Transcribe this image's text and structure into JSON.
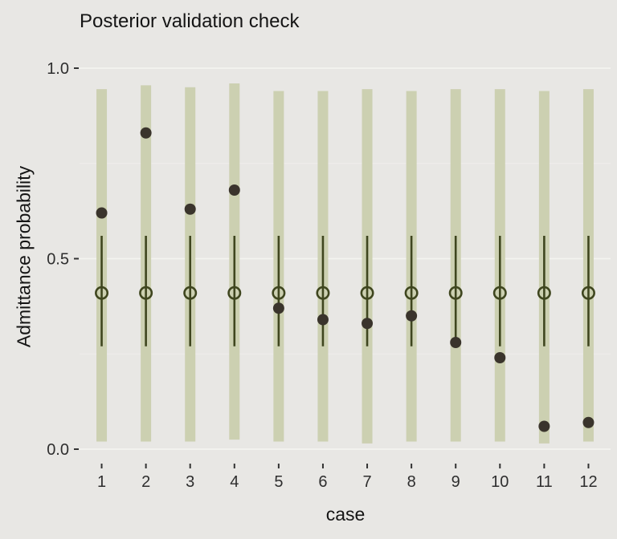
{
  "chart_data": {
    "type": "scatter",
    "subtype": "posterior-predictive-interval-plot",
    "title": "Posterior validation check",
    "xlabel": "case",
    "ylabel": "Admittance probability",
    "ylim": [
      0,
      1
    ],
    "yticks": [
      0.0,
      0.5,
      1.0
    ],
    "ytick_labels": [
      "0.0",
      "0.5",
      "1.0"
    ],
    "yticks_minor": [
      0.25,
      0.75
    ],
    "categories": [
      "1",
      "2",
      "3",
      "4",
      "5",
      "6",
      "7",
      "8",
      "9",
      "10",
      "11",
      "12"
    ],
    "grid": "horizontal-major-on",
    "legend": "none",
    "series": [
      {
        "name": "outer-interval",
        "mark": "thick-bar",
        "lo": [
          0.02,
          0.02,
          0.02,
          0.025,
          0.02,
          0.02,
          0.015,
          0.02,
          0.02,
          0.02,
          0.015,
          0.02
        ],
        "hi": [
          0.945,
          0.955,
          0.95,
          0.96,
          0.94,
          0.94,
          0.945,
          0.94,
          0.945,
          0.945,
          0.94,
          0.945
        ]
      },
      {
        "name": "inner-interval",
        "mark": "thin-line",
        "lo": [
          0.27,
          0.27,
          0.27,
          0.27,
          0.27,
          0.27,
          0.27,
          0.27,
          0.27,
          0.27,
          0.27,
          0.27
        ],
        "hi": [
          0.56,
          0.56,
          0.56,
          0.56,
          0.56,
          0.56,
          0.56,
          0.56,
          0.56,
          0.56,
          0.56,
          0.56
        ]
      },
      {
        "name": "posterior-median",
        "mark": "open-circle",
        "values": [
          0.41,
          0.41,
          0.41,
          0.41,
          0.41,
          0.41,
          0.41,
          0.41,
          0.41,
          0.41,
          0.41,
          0.41
        ]
      },
      {
        "name": "observed",
        "mark": "filled-dot",
        "values": [
          0.62,
          0.83,
          0.63,
          0.68,
          0.37,
          0.34,
          0.33,
          0.35,
          0.28,
          0.24,
          0.06,
          0.07
        ]
      }
    ],
    "colors": {
      "background": "#e8e7e4",
      "outer_bar": "#ccd0b1",
      "inner_line": "#3f461f",
      "open_circle_stroke": "#3f461f",
      "observed_dot": "#3a342c",
      "grid_major": "#f4f3f0",
      "grid_minor": "#efeeeb",
      "tick_mark": "#333333",
      "tick_text": "#2e2e2e",
      "title_text": "#151515"
    }
  }
}
